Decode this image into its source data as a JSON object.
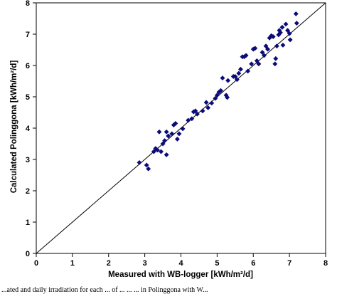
{
  "chart_data": {
    "type": "scatter",
    "xlabel": "Measured with WB-logger [kWh/m²/d]",
    "ylabel": "Calculated Polinggona [kWh/m²/d]",
    "xlim": [
      0,
      8
    ],
    "ylim": [
      0,
      8
    ],
    "xticks": [
      "0",
      "1",
      "2",
      "3",
      "4",
      "5",
      "6",
      "7",
      "8"
    ],
    "yticks": [
      "0",
      "1",
      "2",
      "3",
      "4",
      "5",
      "6",
      "7",
      "8"
    ],
    "grid": false,
    "legend": "none",
    "marker": "diamond",
    "marker_color": "#0b0b7a",
    "reference_line": {
      "label": "",
      "x": [
        0,
        8
      ],
      "y": [
        0,
        8
      ]
    },
    "points": [
      [
        2.85,
        2.9
      ],
      [
        3.05,
        2.82
      ],
      [
        3.1,
        2.7
      ],
      [
        3.25,
        3.25
      ],
      [
        3.3,
        3.35
      ],
      [
        3.35,
        3.3
      ],
      [
        3.4,
        3.88
      ],
      [
        3.45,
        3.25
      ],
      [
        3.5,
        3.5
      ],
      [
        3.55,
        3.6
      ],
      [
        3.6,
        3.15
      ],
      [
        3.6,
        3.88
      ],
      [
        3.65,
        3.75
      ],
      [
        3.75,
        3.82
      ],
      [
        3.8,
        4.1
      ],
      [
        3.85,
        4.15
      ],
      [
        3.9,
        3.65
      ],
      [
        3.95,
        3.82
      ],
      [
        4.05,
        3.98
      ],
      [
        4.2,
        4.25
      ],
      [
        4.3,
        4.3
      ],
      [
        4.35,
        4.52
      ],
      [
        4.4,
        4.55
      ],
      [
        4.45,
        4.45
      ],
      [
        4.6,
        4.55
      ],
      [
        4.7,
        4.82
      ],
      [
        4.75,
        4.65
      ],
      [
        4.85,
        4.8
      ],
      [
        4.95,
        4.95
      ],
      [
        5.0,
        5.05
      ],
      [
        5.05,
        5.15
      ],
      [
        5.1,
        5.2
      ],
      [
        5.15,
        5.6
      ],
      [
        5.25,
        5.05
      ],
      [
        5.28,
        4.98
      ],
      [
        5.3,
        5.52
      ],
      [
        5.45,
        5.65
      ],
      [
        5.5,
        5.65
      ],
      [
        5.55,
        5.55
      ],
      [
        5.6,
        5.75
      ],
      [
        5.65,
        5.88
      ],
      [
        5.7,
        6.28
      ],
      [
        5.75,
        6.28
      ],
      [
        5.8,
        6.32
      ],
      [
        5.85,
        5.82
      ],
      [
        5.95,
        6.05
      ],
      [
        6.0,
        6.52
      ],
      [
        6.05,
        6.55
      ],
      [
        6.1,
        6.15
      ],
      [
        6.15,
        6.05
      ],
      [
        6.25,
        6.42
      ],
      [
        6.3,
        6.32
      ],
      [
        6.35,
        6.62
      ],
      [
        6.4,
        6.52
      ],
      [
        6.45,
        6.88
      ],
      [
        6.5,
        6.95
      ],
      [
        6.55,
        6.92
      ],
      [
        6.6,
        6.05
      ],
      [
        6.62,
        6.22
      ],
      [
        6.65,
        6.62
      ],
      [
        6.7,
        6.98
      ],
      [
        6.72,
        7.12
      ],
      [
        6.75,
        7.05
      ],
      [
        6.8,
        7.22
      ],
      [
        6.82,
        6.65
      ],
      [
        6.9,
        7.32
      ],
      [
        6.95,
        7.12
      ],
      [
        7.0,
        7.02
      ],
      [
        7.02,
        6.82
      ],
      [
        7.18,
        7.65
      ],
      [
        7.2,
        7.35
      ]
    ]
  },
  "caption": {
    "text": "...ated and daily irradiation for each ... of ... ... ... in Polinggona with W..."
  }
}
